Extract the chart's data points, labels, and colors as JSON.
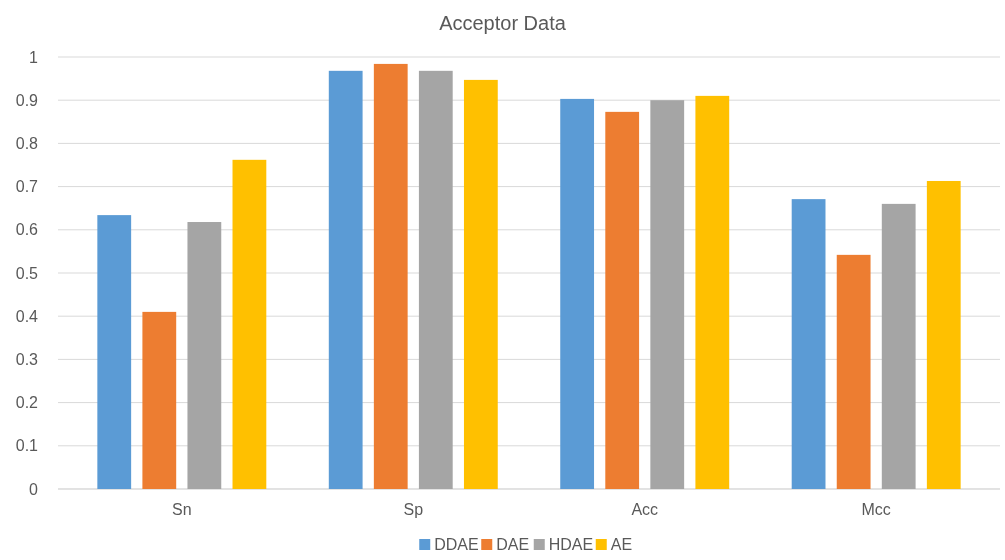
{
  "chart_data": {
    "type": "bar",
    "title": "Acceptor Data",
    "categories": [
      "Sn",
      "Sp",
      "Acc",
      "Mcc"
    ],
    "series": [
      {
        "name": "DDAE",
        "color": "#5b9bd5",
        "values": [
          0.634,
          0.968,
          0.903,
          0.671
        ]
      },
      {
        "name": "DAE",
        "color": "#ed7d31",
        "values": [
          0.41,
          0.984,
          0.873,
          0.542
        ]
      },
      {
        "name": "HDAE",
        "color": "#a5a5a5",
        "values": [
          0.618,
          0.968,
          0.9,
          0.66
        ]
      },
      {
        "name": "AE",
        "color": "#ffc000",
        "values": [
          0.762,
          0.947,
          0.91,
          0.713
        ]
      }
    ],
    "ylim": [
      0,
      1
    ],
    "yticks": [
      0,
      0.1,
      0.2,
      0.3,
      0.4,
      0.5,
      0.6,
      0.7,
      0.8,
      0.9,
      1
    ],
    "grid": "y",
    "legend": "bottom"
  }
}
